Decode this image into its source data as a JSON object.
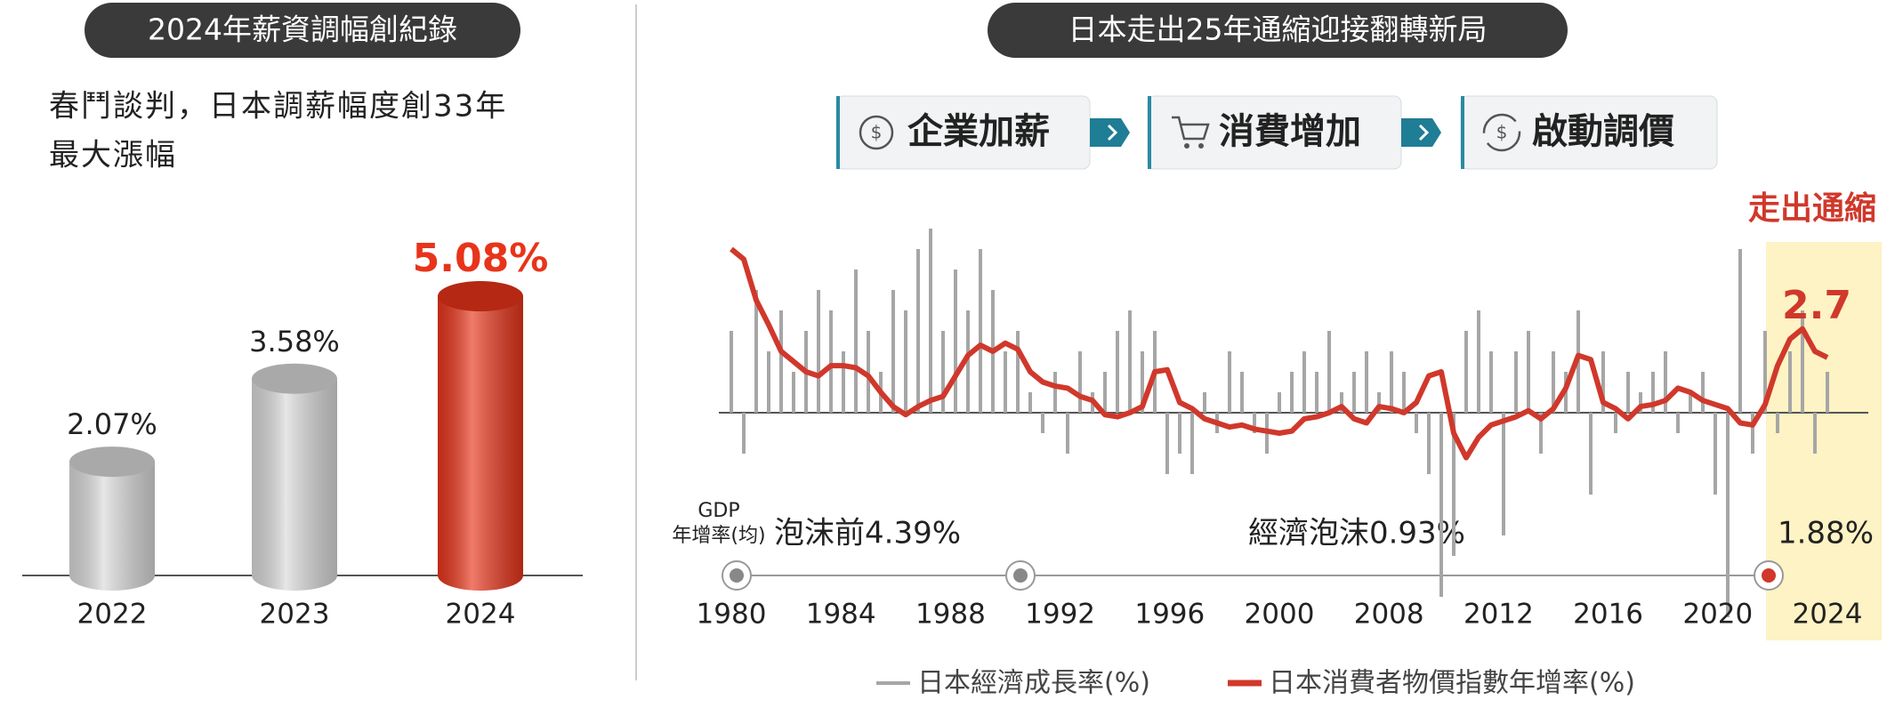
{
  "left": {
    "title": "2024年薪資調幅創紀錄",
    "subtitle": [
      "春鬥談判，日本調薪幅度創33年",
      "最大漲幅"
    ],
    "chart_data": {
      "type": "cylinder",
      "categories": [
        "2022",
        "2023",
        "2024"
      ],
      "values": [
        2.07,
        3.58,
        5.08
      ],
      "value_labels": [
        "2.07%",
        "3.58%",
        "5.08%"
      ],
      "colors": [
        "#d9d9d9",
        "#d9d9d9",
        "#e8341a"
      ]
    }
  },
  "right": {
    "title": "日本走出25年通縮迎接翻轉新局",
    "steps": [
      "企業加薪",
      "消費增加",
      "啟動調價"
    ],
    "annotation": "走出通縮",
    "chart_data": {
      "type": "bar-line",
      "x_labels": [
        "1980",
        "1984",
        "1988",
        "1992",
        "1996",
        "2000",
        "2008",
        "2012",
        "2016",
        "2020",
        "2024"
      ],
      "ylim": [
        -10,
        10
      ],
      "series": [
        {
          "name": "日本經濟成長率(%)",
          "type": "bar",
          "color": "#a6a6a6",
          "values": [
            4,
            -2,
            6,
            3,
            5,
            2,
            4,
            6,
            5,
            3,
            7,
            4,
            2,
            6,
            5,
            8,
            9,
            4,
            7,
            5,
            8,
            6,
            3,
            4,
            1,
            -1,
            2,
            -2,
            3,
            1,
            2,
            4,
            5,
            3,
            4,
            -3,
            -2,
            -3,
            1,
            -1,
            3,
            2,
            -1,
            -2,
            1,
            2,
            3,
            2,
            4,
            1,
            2,
            3,
            1,
            3,
            2,
            -1,
            -3,
            -9,
            -7,
            4,
            5,
            3,
            -6,
            3,
            4,
            -2,
            3,
            2,
            5,
            -4,
            3,
            -1,
            2,
            1,
            2,
            3,
            -1,
            1,
            2,
            -4,
            -10,
            8,
            -2,
            4,
            -1,
            3,
            5,
            -2,
            2
          ]
        },
        {
          "name": "日本消費者物價指數年增率(%)",
          "type": "line",
          "color": "#d0382b",
          "values": [
            8.0,
            7.5,
            5.5,
            4.3,
            3.0,
            2.5,
            2.0,
            1.8,
            2.3,
            2.3,
            2.2,
            1.8,
            1.0,
            0.3,
            -0.1,
            0.3,
            0.6,
            0.8,
            1.8,
            2.8,
            3.3,
            3.0,
            3.4,
            3.1,
            2.0,
            1.5,
            1.3,
            1.2,
            0.8,
            0.6,
            -0.1,
            -0.2,
            0.0,
            0.3,
            2.0,
            2.1,
            0.5,
            0.2,
            -0.3,
            -0.5,
            -0.7,
            -0.6,
            -0.8,
            -0.9,
            -1.0,
            -0.9,
            -0.3,
            -0.2,
            0.0,
            0.3,
            -0.3,
            -0.5,
            0.3,
            0.2,
            0.0,
            0.5,
            1.8,
            2.0,
            -1.0,
            -2.2,
            -1.2,
            -0.6,
            -0.4,
            -0.2,
            0.1,
            -0.3,
            0.2,
            1.2,
            2.8,
            2.6,
            0.5,
            0.2,
            -0.3,
            0.3,
            0.4,
            0.6,
            1.2,
            1.0,
            0.6,
            0.4,
            0.2,
            -0.5,
            -0.6,
            0.4,
            2.3,
            3.6,
            4.1,
            3.0,
            2.7
          ]
        }
      ]
    },
    "timeline": {
      "label": [
        "GDP",
        "年增率(均)"
      ],
      "periods": [
        "泡沫前4.39%",
        "經濟泡沫0.93%",
        "1.88%"
      ]
    }
  }
}
